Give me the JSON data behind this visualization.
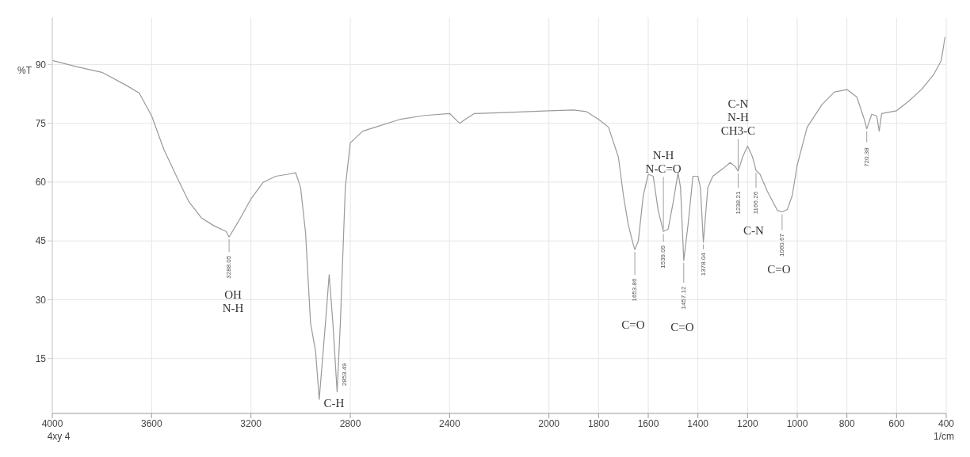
{
  "chart_data": {
    "type": "line",
    "ylabel": "%T",
    "xlabel": "1/cm",
    "xlim": [
      4000,
      400
    ],
    "xticks": [
      4000,
      3600,
      3200,
      2800,
      2400,
      2000,
      1800,
      1600,
      1400,
      1200,
      1000,
      800,
      600,
      400
    ],
    "ylim": [
      1,
      102
    ],
    "yticks": [
      15,
      30,
      45,
      60,
      75,
      90
    ],
    "grid": true,
    "marker": "none",
    "line_style": "solid",
    "series": [
      {
        "color": "#9a9a9a",
        "x": [
          4000,
          3900,
          3800,
          3700,
          3650,
          3600,
          3550,
          3500,
          3450,
          3400,
          3350,
          3300,
          3288,
          3250,
          3200,
          3150,
          3100,
          3050,
          3020,
          3000,
          2980,
          2960,
          2940,
          2925,
          2900,
          2885,
          2870,
          2853,
          2840,
          2820,
          2800,
          2750,
          2700,
          2600,
          2500,
          2400,
          2360,
          2330,
          2300,
          2200,
          2000,
          1900,
          1850,
          1800,
          1760,
          1720,
          1700,
          1680,
          1660,
          1654,
          1640,
          1620,
          1600,
          1580,
          1560,
          1539,
          1520,
          1500,
          1480,
          1470,
          1457,
          1440,
          1420,
          1400,
          1390,
          1378,
          1360,
          1340,
          1300,
          1270,
          1250,
          1238,
          1220,
          1200,
          1180,
          1166,
          1150,
          1120,
          1080,
          1061,
          1040,
          1020,
          1000,
          960,
          900,
          850,
          800,
          760,
          730,
          720,
          700,
          680,
          670,
          660,
          600,
          550,
          500,
          450,
          420,
          405
        ],
        "values": [
          91,
          89.4,
          88,
          84.6,
          82.7,
          76.9,
          68.2,
          61.5,
          55,
          50.9,
          48.9,
          47.4,
          46,
          50,
          55.7,
          60,
          61.5,
          62,
          62.4,
          58.6,
          47,
          24,
          17,
          4.6,
          24,
          36.4,
          24,
          6.5,
          24,
          58.6,
          70,
          73,
          74,
          76,
          77,
          77.5,
          75,
          76.3,
          77.5,
          77.7,
          78.2,
          78.4,
          78,
          76,
          74,
          66.3,
          56.6,
          49,
          44,
          42.8,
          45,
          56.6,
          62,
          61.5,
          52.8,
          47.4,
          48,
          54.7,
          62.4,
          58.6,
          40,
          49,
          61.5,
          61.5,
          58.6,
          44.7,
          58.6,
          61.5,
          63.4,
          65,
          64,
          62.8,
          66.4,
          69.2,
          66.4,
          63,
          62,
          57.6,
          52.8,
          52.4,
          53,
          56.6,
          64.4,
          74,
          79.8,
          83,
          83.6,
          81.7,
          76,
          73.6,
          77.3,
          76.9,
          73,
          77.5,
          78.2,
          80.7,
          83.6,
          87.5,
          91,
          97
        ]
      }
    ],
    "annotations": [
      {
        "text": "3288.05",
        "x": 3288,
        "y": 46
      },
      {
        "text": "2853.49",
        "x": 2853,
        "y": 6.5
      },
      {
        "text": "1653.86",
        "x": 1654,
        "y": 42.8
      },
      {
        "text": "1539.09",
        "x": 1539,
        "y": 47.4
      },
      {
        "text": "1457.12",
        "x": 1457,
        "y": 40
      },
      {
        "text": "1378.04",
        "x": 1378,
        "y": 44.7
      },
      {
        "text": "1238.21",
        "x": 1238,
        "y": 62.8
      },
      {
        "text": "1166.26",
        "x": 1166,
        "y": 63
      },
      {
        "text": "1060.67",
        "x": 1061,
        "y": 52.4
      },
      {
        "text": "720.38",
        "x": 720,
        "y": 73.6
      },
      {
        "text": "C-H",
        "x": 2853,
        "y": 6.5
      },
      {
        "text": "N-H\nN-C=O",
        "x": 1539,
        "y": 47.4
      },
      {
        "text": "C-N\nN-H\nCH3-C",
        "x": 1238,
        "y": 62.8
      },
      "OH\nN-H",
      "C=O",
      "C=O",
      "C-N",
      "C=O",
      "4xy 4"
    ]
  }
}
